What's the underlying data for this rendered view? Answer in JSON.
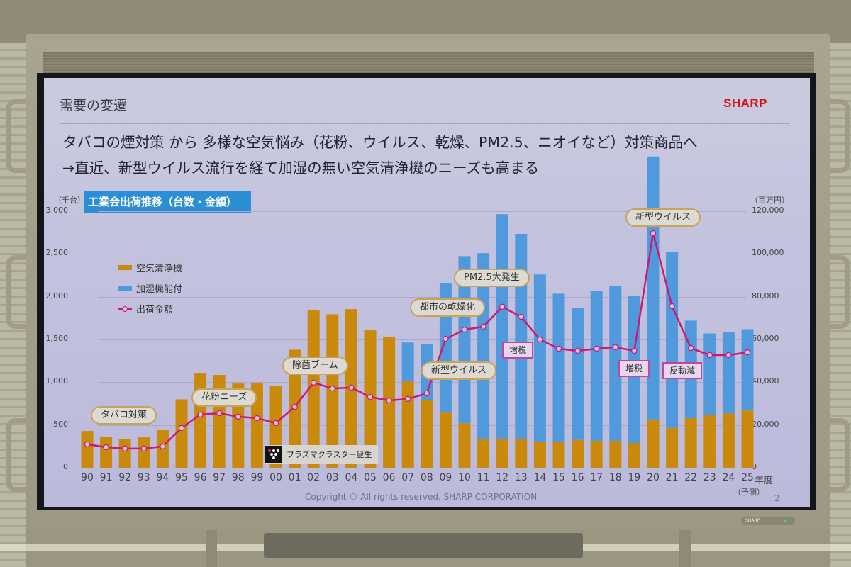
{
  "slide": {
    "title": "需要の変遷",
    "logo": "SHARP",
    "headline_line1": "タバコの煙対策 から 多様な空気悩み（花粉、ウイルス、乾燥、PM2.5、ニオイなど）対策商品へ",
    "headline_line2": "→直近、新型ウイルス流行を経て加湿の無い空気清浄機のニーズも高まる",
    "chart_banner": "工業会出荷推移（台数・金額）",
    "footer": "Copyright © All rights reserved, SHARP CORPORATION",
    "page_number": "2",
    "plasmacluster_label": "プラズマクラスター誕生",
    "bezel_brand": "SHARP"
  },
  "colors": {
    "air_purifier": "#c98a0c",
    "humidifying": "#5199dd",
    "amount_line": "#cc1877",
    "banner": "#2a8fd4",
    "logo": "#d6101d"
  },
  "chart_data": {
    "type": "bar",
    "stacked": true,
    "title": "工業会出荷推移（台数・金額）",
    "xlabel": "年度",
    "x_suffix": "年度",
    "x_note": "（予測）",
    "ylabel_left": "（千台）",
    "ylabel_right": "（百万円）",
    "ylim_left": [
      0,
      3000
    ],
    "ylim_right": [
      0,
      120000
    ],
    "yticks_left": [
      "0",
      "500",
      "1,000",
      "1,500",
      "2,000",
      "2,500",
      "3,000"
    ],
    "yticks_right": [
      "0",
      "20,000",
      "40,000",
      "60,000",
      "80,000",
      "100,000",
      "120,000"
    ],
    "grid": true,
    "legend_position": "upper-left",
    "legend": [
      "空気清浄機",
      "加湿機能付",
      "出荷金額"
    ],
    "categories": [
      "90",
      "91",
      "92",
      "93",
      "94",
      "95",
      "96",
      "97",
      "98",
      "99",
      "00",
      "01",
      "02",
      "03",
      "04",
      "05",
      "06",
      "07",
      "08",
      "09",
      "10",
      "11",
      "12",
      "13",
      "14",
      "15",
      "16",
      "17",
      "18",
      "19",
      "20",
      "21",
      "22",
      "23",
      "24",
      "25"
    ],
    "series": [
      {
        "name": "空気清浄機",
        "kind": "bar",
        "axis": "left",
        "values": [
          430,
          360,
          340,
          355,
          445,
          800,
          1110,
          1085,
          985,
          995,
          960,
          1380,
          1845,
          1795,
          1855,
          1615,
          1525,
          1010,
          790,
          645,
          520,
          340,
          340,
          340,
          300,
          300,
          325,
          315,
          315,
          290,
          565,
          465,
          580,
          620,
          635,
          670
        ]
      },
      {
        "name": "加湿機能付",
        "kind": "bar",
        "axis": "left",
        "values": [
          0,
          0,
          0,
          0,
          0,
          0,
          0,
          0,
          0,
          0,
          0,
          0,
          0,
          0,
          0,
          0,
          0,
          455,
          660,
          1515,
          1955,
          2170,
          2625,
          2395,
          1960,
          1735,
          1545,
          1755,
          1810,
          1720,
          3075,
          2060,
          1140,
          950,
          950,
          950
        ]
      },
      {
        "name": "出荷金額",
        "kind": "line",
        "axis": "right",
        "values": [
          11000,
          9600,
          9000,
          9000,
          10000,
          18600,
          24900,
          25500,
          23900,
          23200,
          20900,
          28500,
          39800,
          37100,
          37500,
          33100,
          31500,
          32200,
          34800,
          60300,
          64600,
          66000,
          75300,
          70600,
          60000,
          55700,
          54700,
          55700,
          56400,
          54700,
          109700,
          75600,
          56000,
          52700,
          52700,
          54000
        ]
      }
    ],
    "annotations": [
      {
        "text": "タバコ対策",
        "style": "callout",
        "near": "92"
      },
      {
        "text": "花粉ニーズ",
        "style": "callout",
        "near": "97"
      },
      {
        "text": "除菌ブーム",
        "style": "callout",
        "near": "01"
      },
      {
        "text": "プラズマクラスター誕生",
        "style": "badge",
        "near": "00"
      },
      {
        "text": "新型ウイルス",
        "style": "callout",
        "near": "09"
      },
      {
        "text": "都市の乾燥化",
        "style": "callout",
        "near": "09"
      },
      {
        "text": "PM2.5大発生",
        "style": "callout",
        "near": "12"
      },
      {
        "text": "増税",
        "style": "tag",
        "near": "13"
      },
      {
        "text": "新型ウイルス",
        "style": "callout",
        "near": "20"
      },
      {
        "text": "増税",
        "style": "tag",
        "near": "19"
      },
      {
        "text": "反動減",
        "style": "tag",
        "near": "21"
      }
    ]
  }
}
